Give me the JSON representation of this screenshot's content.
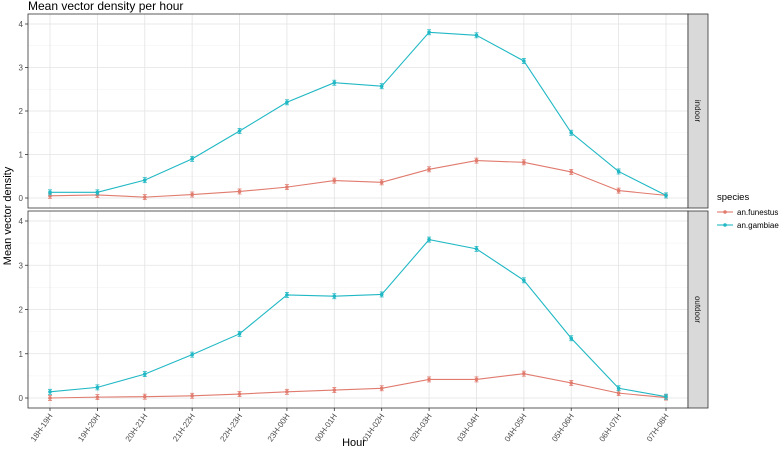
{
  "chart_data": {
    "type": "line",
    "title": "Mean vector density per hour",
    "xlabel": "Hour",
    "ylabel": "Mean vector density",
    "ylim": [
      0,
      4
    ],
    "yticks": [
      "0",
      "1",
      "2",
      "3",
      "4"
    ],
    "categories": [
      "18H-19H",
      "19H-20H",
      "20H-21H",
      "21H-22H",
      "22H-23H",
      "23H-00H",
      "00H-01H",
      "01H-02H",
      "02H-03H",
      "03H-04H",
      "04H-05H",
      "05H-06H",
      "06H-07H",
      "07H-08H"
    ],
    "legend_title": "species",
    "legend_position": "right",
    "grid": true,
    "series_colors": {
      "an.funestus": "#e07b6e",
      "an.gambiae": "#20b8c4"
    },
    "panels": [
      {
        "label": "indoor",
        "series": [
          {
            "name": "an.funestus",
            "values": [
              0.05,
              0.07,
              0.02,
              0.08,
              0.15,
              0.25,
              0.4,
              0.36,
              0.66,
              0.86,
              0.82,
              0.6,
              0.17,
              0.06
            ]
          },
          {
            "name": "an.gambiae",
            "values": [
              0.13,
              0.13,
              0.41,
              0.9,
              1.54,
              2.2,
              2.65,
              2.57,
              3.81,
              3.74,
              3.15,
              1.5,
              0.61,
              0.06
            ]
          }
        ]
      },
      {
        "label": "outdoor",
        "series": [
          {
            "name": "an.funestus",
            "values": [
              0.0,
              0.02,
              0.03,
              0.05,
              0.09,
              0.14,
              0.18,
              0.22,
              0.42,
              0.42,
              0.55,
              0.34,
              0.11,
              0.01
            ]
          },
          {
            "name": "an.gambiae",
            "values": [
              0.14,
              0.24,
              0.54,
              0.98,
              1.45,
              2.33,
              2.3,
              2.34,
              3.58,
              3.37,
              2.66,
              1.35,
              0.22,
              0.03
            ]
          }
        ]
      }
    ]
  }
}
